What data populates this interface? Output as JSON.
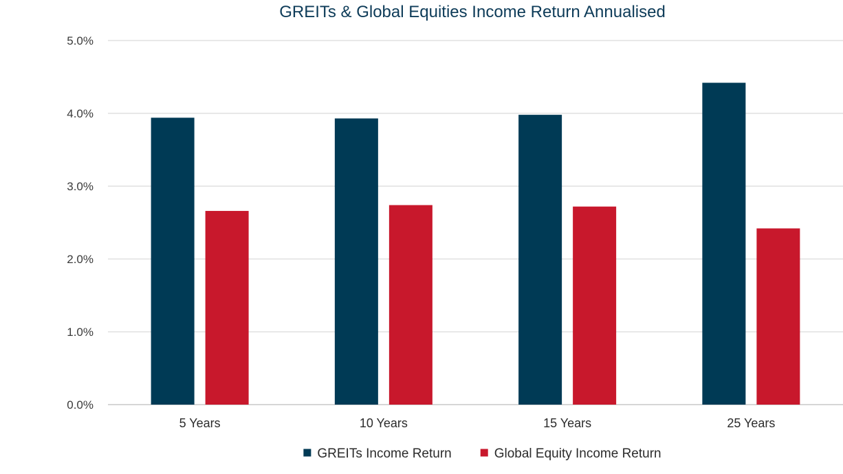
{
  "chart_data": {
    "type": "bar",
    "title": "GREITs & Global Equities Income Return Annualised",
    "xlabel": "",
    "ylabel": "",
    "categories": [
      "5 Years",
      "10 Years",
      "15 Years",
      "25 Years"
    ],
    "series": [
      {
        "name": "GREITs Income Return",
        "color": "#003a55",
        "values": [
          3.94,
          3.93,
          3.98,
          4.42
        ]
      },
      {
        "name": "Global Equity Income Return",
        "color": "#c8182c",
        "values": [
          2.66,
          2.74,
          2.72,
          2.42
        ]
      }
    ],
    "ylim": [
      0,
      5
    ],
    "yticks": [
      "0.0%",
      "1.0%",
      "2.0%",
      "3.0%",
      "4.0%",
      "5.0%"
    ],
    "ytick_values": [
      0,
      1,
      2,
      3,
      4,
      5
    ],
    "grid": true,
    "legend_position": "bottom"
  }
}
